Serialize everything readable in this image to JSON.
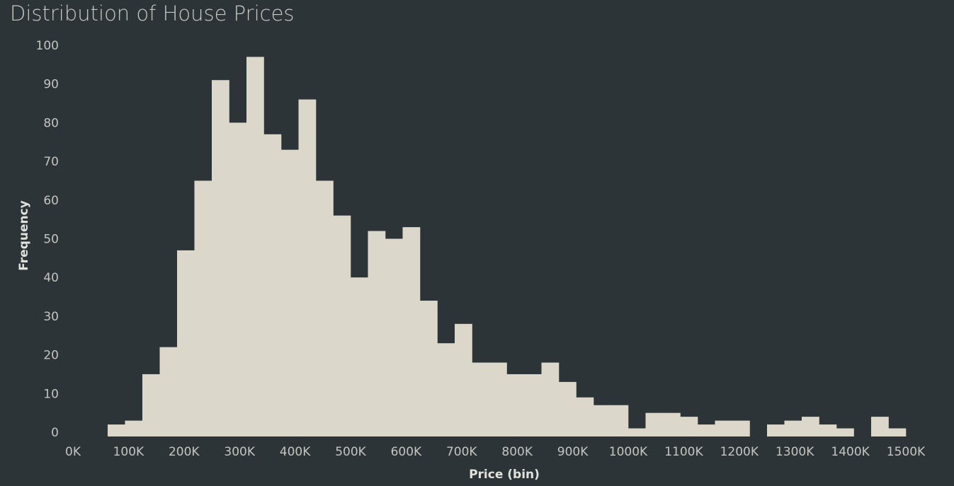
{
  "title": "Distribution of House Prices",
  "chart_data": {
    "type": "bar",
    "title": "Distribution of House Prices",
    "xlabel": "Price (bin)",
    "ylabel": "Frequency",
    "bin_width": 31250,
    "x": [
      62500,
      93750,
      125000,
      156250,
      187500,
      218750,
      250000,
      281250,
      312500,
      343750,
      375000,
      406250,
      437500,
      468750,
      500000,
      531250,
      562500,
      593750,
      625000,
      656250,
      687500,
      718750,
      750000,
      781250,
      812500,
      843750,
      875000,
      906250,
      937500,
      968750,
      1000000,
      1031250,
      1062500,
      1093750,
      1125000,
      1156250,
      1187500,
      1218750,
      1250000,
      1281250,
      1312500,
      1343750,
      1375000,
      1406250,
      1437500,
      1468750
    ],
    "values": [
      2,
      3,
      15,
      22,
      47,
      65,
      91,
      80,
      97,
      77,
      73,
      86,
      65,
      56,
      40,
      52,
      50,
      53,
      34,
      23,
      28,
      18,
      18,
      15,
      15,
      18,
      13,
      9,
      7,
      7,
      1,
      5,
      5,
      4,
      2,
      3,
      3,
      0,
      2,
      3,
      4,
      2,
      1,
      0,
      4,
      1
    ],
    "xticks": [
      "0K",
      "100K",
      "200K",
      "300K",
      "400K",
      "500K",
      "600K",
      "700K",
      "800K",
      "900K",
      "1000K",
      "1100K",
      "1200K",
      "1300K",
      "1400K",
      "1500K"
    ],
    "xtick_values": [
      0,
      100000,
      200000,
      300000,
      400000,
      500000,
      600000,
      700000,
      800000,
      900000,
      1000000,
      1100000,
      1200000,
      1300000,
      1400000,
      1500000
    ],
    "yticks": [
      "0",
      "10",
      "20",
      "30",
      "40",
      "50",
      "60",
      "70",
      "80",
      "90",
      "100"
    ],
    "ytick_values": [
      0,
      10,
      20,
      30,
      40,
      50,
      60,
      70,
      80,
      90,
      100
    ],
    "xlim": [
      0,
      1500000
    ],
    "ylim": [
      0,
      100
    ],
    "grid": false,
    "bar_color": "#dcd7cb",
    "background": "#2c3438"
  }
}
